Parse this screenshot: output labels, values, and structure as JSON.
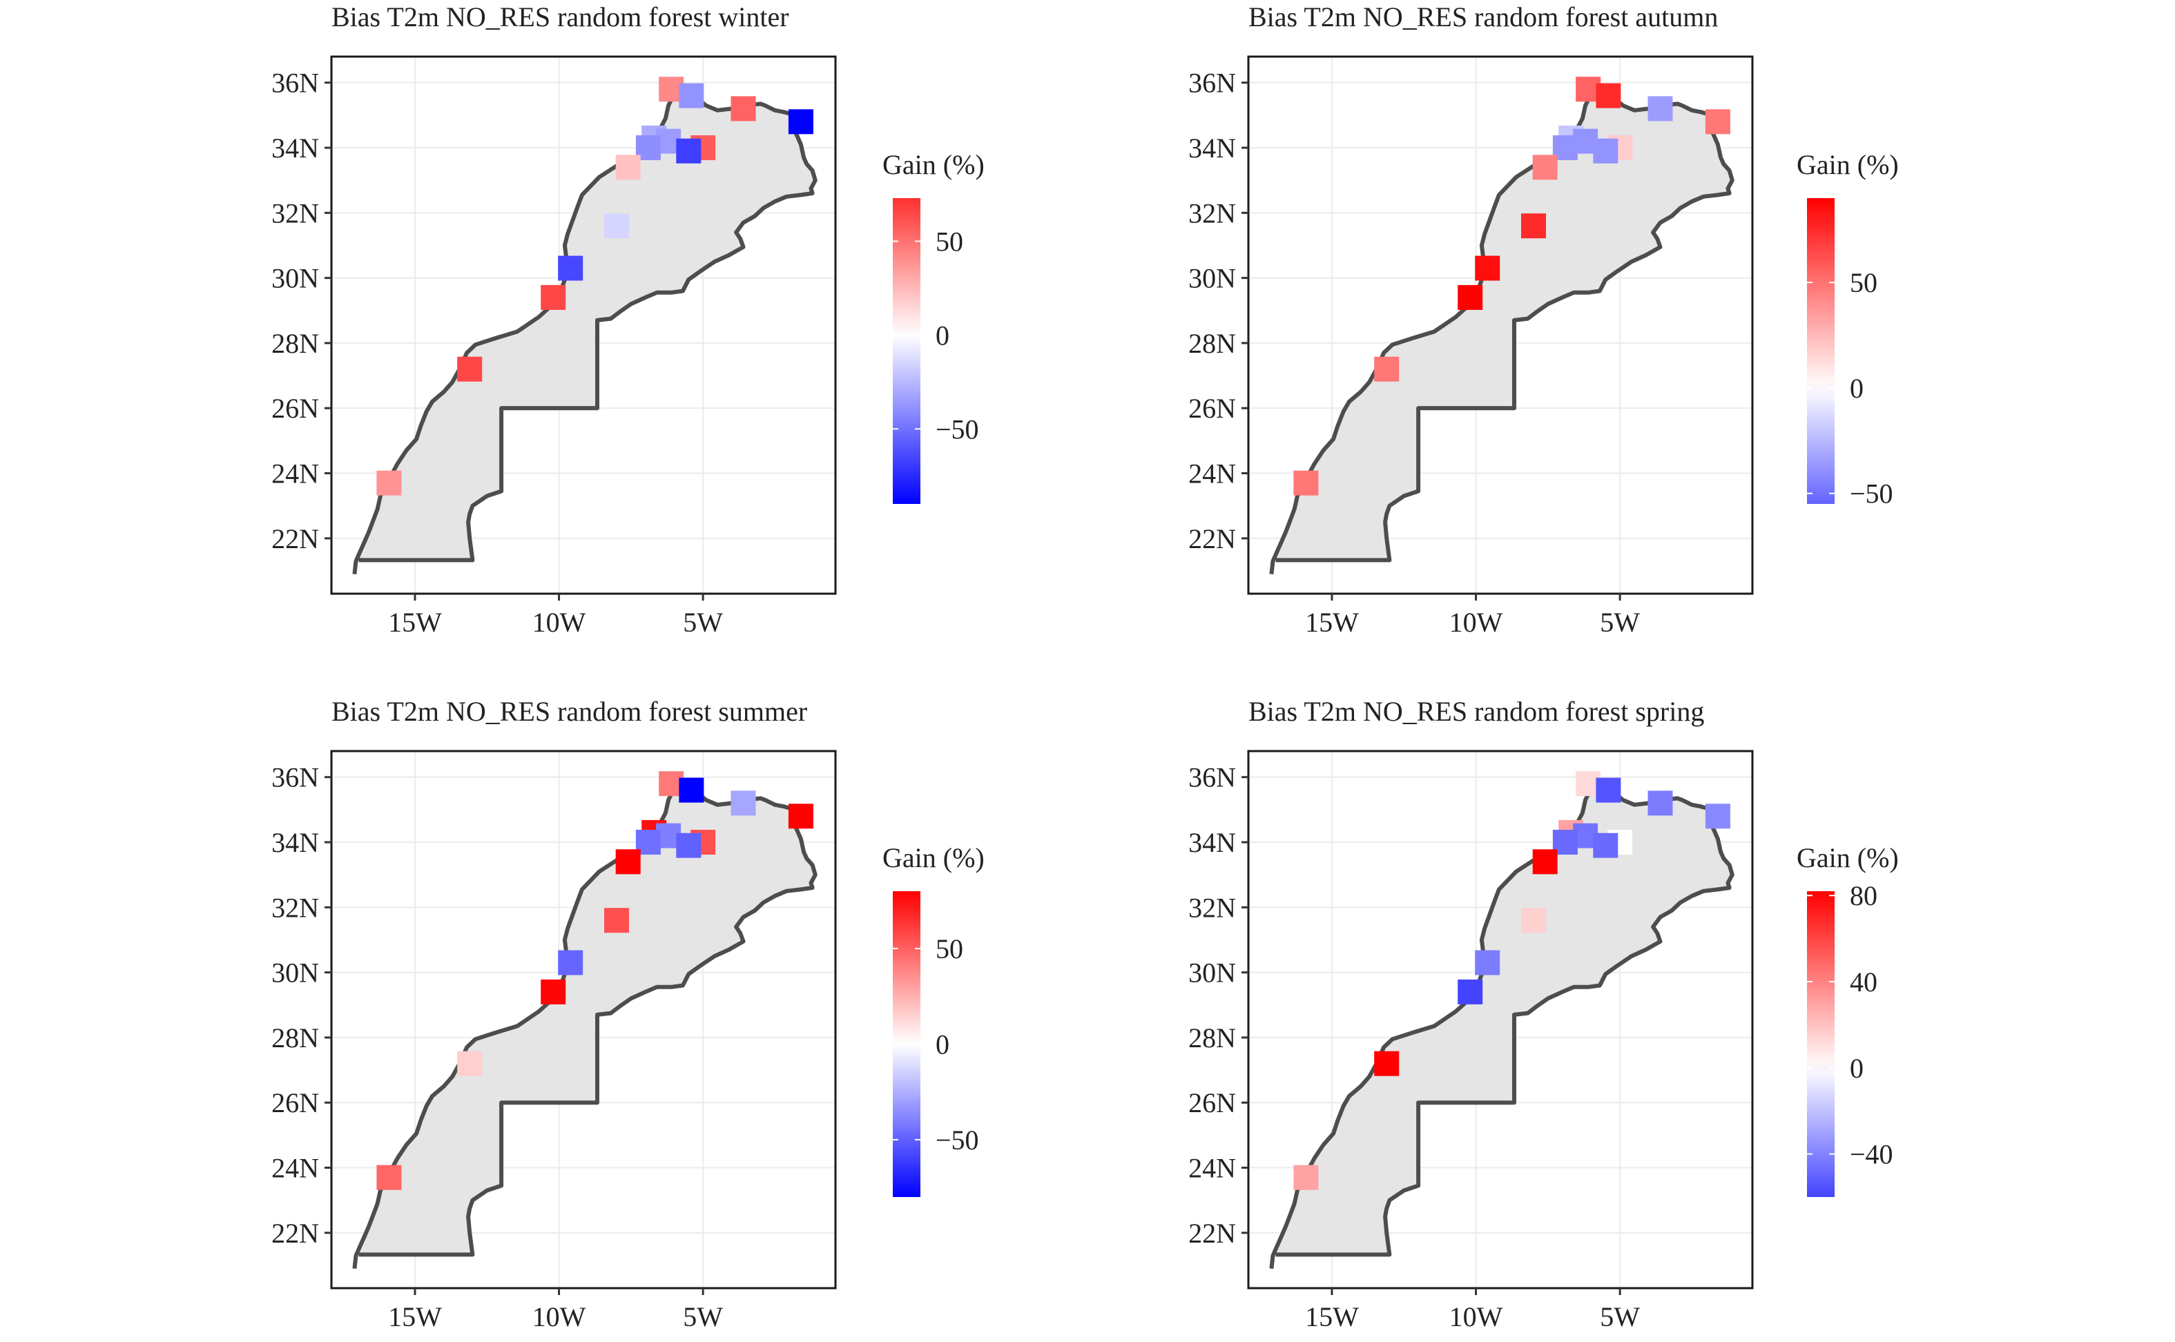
{
  "figure": {
    "background": "#ffffff",
    "land_fill": "#e5e5e5",
    "border_color": "#4d4d4d",
    "grid_color": "#ebebeb",
    "color_low": "#0000ff",
    "color_mid": "#ffffff",
    "color_high": "#ff0000"
  },
  "axes": {
    "lon_ticks": [
      {
        "value": -15,
        "label": "15W"
      },
      {
        "value": -10,
        "label": "10W"
      },
      {
        "value": -5,
        "label": "5W"
      }
    ],
    "lat_ticks": [
      {
        "value": 36,
        "label": "36N"
      },
      {
        "value": 34,
        "label": "34N"
      },
      {
        "value": 32,
        "label": "32N"
      },
      {
        "value": 30,
        "label": "30N"
      },
      {
        "value": 28,
        "label": "28N"
      },
      {
        "value": 26,
        "label": "26N"
      },
      {
        "value": 24,
        "label": "24N"
      },
      {
        "value": 22,
        "label": "22N"
      }
    ],
    "xlim": [
      -17.9,
      -0.4
    ],
    "ylim": [
      20.3,
      36.8
    ]
  },
  "chart_data": [
    {
      "type": "map-points",
      "title": "Bias T2m NO_RES random forest winter",
      "legend": {
        "title": "Gain (%)",
        "range": [
          -90,
          73
        ],
        "breaks": [
          {
            "value": 50,
            "label": "50"
          },
          {
            "value": 0,
            "label": "0"
          },
          {
            "value": -50,
            "label": "−50"
          }
        ]
      },
      "points": [
        {
          "lon": -6.1,
          "lat": 35.8,
          "gain": 42
        },
        {
          "lon": -5.4,
          "lat": 35.6,
          "gain": -38
        },
        {
          "lon": -3.6,
          "lat": 35.2,
          "gain": 55
        },
        {
          "lon": -1.6,
          "lat": 34.8,
          "gain": -90
        },
        {
          "lon": -6.7,
          "lat": 34.3,
          "gain": -30
        },
        {
          "lon": -6.2,
          "lat": 34.2,
          "gain": -35
        },
        {
          "lon": -6.9,
          "lat": 34.0,
          "gain": -40
        },
        {
          "lon": -5.0,
          "lat": 34.0,
          "gain": 58
        },
        {
          "lon": -5.5,
          "lat": 33.9,
          "gain": -68
        },
        {
          "lon": -7.6,
          "lat": 33.4,
          "gain": 22
        },
        {
          "lon": -8.0,
          "lat": 31.6,
          "gain": -15
        },
        {
          "lon": -9.6,
          "lat": 30.3,
          "gain": -65
        },
        {
          "lon": -10.2,
          "lat": 29.4,
          "gain": 65
        },
        {
          "lon": -13.1,
          "lat": 27.2,
          "gain": 65
        },
        {
          "lon": -15.9,
          "lat": 23.7,
          "gain": 38
        }
      ]
    },
    {
      "type": "map-points",
      "title": "Bias T2m NO_RES random forest autumn",
      "legend": {
        "title": "Gain (%)",
        "range": [
          -55,
          90
        ],
        "breaks": [
          {
            "value": 50,
            "label": "50"
          },
          {
            "value": 0,
            "label": "0"
          },
          {
            "value": -50,
            "label": "−50"
          }
        ]
      },
      "points": [
        {
          "lon": -6.1,
          "lat": 35.8,
          "gain": 55
        },
        {
          "lon": -5.4,
          "lat": 35.6,
          "gain": 75
        },
        {
          "lon": -3.6,
          "lat": 35.2,
          "gain": -35
        },
        {
          "lon": -1.6,
          "lat": 34.8,
          "gain": 48
        },
        {
          "lon": -6.7,
          "lat": 34.3,
          "gain": -20
        },
        {
          "lon": -6.2,
          "lat": 34.2,
          "gain": -38
        },
        {
          "lon": -6.9,
          "lat": 34.0,
          "gain": -38
        },
        {
          "lon": -5.0,
          "lat": 34.0,
          "gain": 18
        },
        {
          "lon": -5.5,
          "lat": 33.9,
          "gain": -38
        },
        {
          "lon": -7.6,
          "lat": 33.4,
          "gain": 45
        },
        {
          "lon": -8.0,
          "lat": 31.6,
          "gain": 75
        },
        {
          "lon": -9.6,
          "lat": 30.3,
          "gain": 85
        },
        {
          "lon": -10.2,
          "lat": 29.4,
          "gain": 90
        },
        {
          "lon": -13.1,
          "lat": 27.2,
          "gain": 48
        },
        {
          "lon": -15.9,
          "lat": 23.7,
          "gain": 48
        }
      ]
    },
    {
      "type": "map-points",
      "title": "Bias T2m NO_RES random forest summer",
      "legend": {
        "title": "Gain (%)",
        "range": [
          -80,
          80
        ],
        "breaks": [
          {
            "value": 50,
            "label": "50"
          },
          {
            "value": 0,
            "label": "0"
          },
          {
            "value": -50,
            "label": "−50"
          }
        ]
      },
      "points": [
        {
          "lon": -6.1,
          "lat": 35.8,
          "gain": 42
        },
        {
          "lon": -5.4,
          "lat": 35.6,
          "gain": -80
        },
        {
          "lon": -3.6,
          "lat": 35.2,
          "gain": -28
        },
        {
          "lon": -1.6,
          "lat": 34.8,
          "gain": 80
        },
        {
          "lon": -6.7,
          "lat": 34.3,
          "gain": 75
        },
        {
          "lon": -6.2,
          "lat": 34.2,
          "gain": -40
        },
        {
          "lon": -6.9,
          "lat": 34.0,
          "gain": -45
        },
        {
          "lon": -5.0,
          "lat": 34.0,
          "gain": 55
        },
        {
          "lon": -5.5,
          "lat": 33.9,
          "gain": -50
        },
        {
          "lon": -7.6,
          "lat": 33.4,
          "gain": 80
        },
        {
          "lon": -8.0,
          "lat": 31.6,
          "gain": 55
        },
        {
          "lon": -9.6,
          "lat": 30.3,
          "gain": -48
        },
        {
          "lon": -10.2,
          "lat": 29.4,
          "gain": 78
        },
        {
          "lon": -13.1,
          "lat": 27.2,
          "gain": 15
        },
        {
          "lon": -15.9,
          "lat": 23.7,
          "gain": 48
        }
      ]
    },
    {
      "type": "map-points",
      "title": "Bias T2m NO_RES random forest spring",
      "legend": {
        "title": "Gain (%)",
        "range": [
          -60,
          82
        ],
        "breaks": [
          {
            "value": 80,
            "label": "80"
          },
          {
            "value": 40,
            "label": "40"
          },
          {
            "value": 0,
            "label": "0"
          },
          {
            "value": -40,
            "label": "−40"
          }
        ]
      },
      "points": [
        {
          "lon": -6.1,
          "lat": 35.8,
          "gain": 12
        },
        {
          "lon": -5.4,
          "lat": 35.6,
          "gain": -55
        },
        {
          "lon": -3.6,
          "lat": 35.2,
          "gain": -42
        },
        {
          "lon": -1.6,
          "lat": 34.8,
          "gain": -38
        },
        {
          "lon": -6.7,
          "lat": 34.3,
          "gain": 30
        },
        {
          "lon": -6.2,
          "lat": 34.2,
          "gain": -45
        },
        {
          "lon": -6.9,
          "lat": 34.0,
          "gain": -48
        },
        {
          "lon": -5.0,
          "lat": 34.0,
          "gain": 0
        },
        {
          "lon": -5.5,
          "lat": 33.9,
          "gain": -48
        },
        {
          "lon": -7.6,
          "lat": 33.4,
          "gain": 82
        },
        {
          "lon": -8.0,
          "lat": 31.6,
          "gain": 15
        },
        {
          "lon": -9.6,
          "lat": 30.3,
          "gain": -42
        },
        {
          "lon": -10.2,
          "lat": 29.4,
          "gain": -60
        },
        {
          "lon": -13.1,
          "lat": 27.2,
          "gain": 82
        },
        {
          "lon": -15.9,
          "lat": 23.7,
          "gain": 30
        }
      ]
    }
  ],
  "morocco_outline": [
    [
      -17.1,
      20.9
    ],
    [
      -17.05,
      21.3
    ],
    [
      -16.9,
      21.6
    ],
    [
      -16.75,
      21.9
    ],
    [
      -16.6,
      22.2
    ],
    [
      -16.45,
      22.55
    ],
    [
      -16.3,
      22.9
    ],
    [
      -16.2,
      23.3
    ],
    [
      -16.0,
      23.6
    ],
    [
      -15.85,
      23.9
    ],
    [
      -15.6,
      24.3
    ],
    [
      -15.3,
      24.7
    ],
    [
      -14.95,
      25.05
    ],
    [
      -14.8,
      25.45
    ],
    [
      -14.6,
      25.9
    ],
    [
      -14.4,
      26.2
    ],
    [
      -14.0,
      26.5
    ],
    [
      -13.7,
      26.8
    ],
    [
      -13.45,
      27.2
    ],
    [
      -13.2,
      27.7
    ],
    [
      -12.9,
      27.95
    ],
    [
      -12.2,
      28.15
    ],
    [
      -11.45,
      28.35
    ],
    [
      -10.7,
      28.8
    ],
    [
      -10.2,
      29.2
    ],
    [
      -9.9,
      29.7
    ],
    [
      -9.65,
      30.3
    ],
    [
      -9.75,
      30.65
    ],
    [
      -9.8,
      31.0
    ],
    [
      -9.7,
      31.35
    ],
    [
      -9.35,
      32.2
    ],
    [
      -9.2,
      32.55
    ],
    [
      -8.6,
      33.1
    ],
    [
      -7.9,
      33.5
    ],
    [
      -7.3,
      33.7
    ],
    [
      -6.85,
      34.05
    ],
    [
      -6.6,
      34.4
    ],
    [
      -6.3,
      34.9
    ],
    [
      -6.2,
      35.3
    ],
    [
      -6.0,
      35.65
    ],
    [
      -5.9,
      35.8
    ],
    [
      -5.6,
      35.85
    ],
    [
      -5.4,
      35.85
    ],
    [
      -5.3,
      35.6
    ],
    [
      -4.9,
      35.3
    ],
    [
      -4.5,
      35.15
    ],
    [
      -4.0,
      35.2
    ],
    [
      -3.5,
      35.3
    ],
    [
      -3.0,
      35.35
    ],
    [
      -2.85,
      35.3
    ],
    [
      -2.5,
      35.15
    ],
    [
      -2.2,
      35.1
    ],
    [
      -2.0,
      35.05
    ],
    [
      -1.8,
      34.9
    ],
    [
      -1.75,
      34.7
    ],
    [
      -1.8,
      34.5
    ],
    [
      -1.7,
      34.3
    ],
    [
      -1.6,
      34.1
    ],
    [
      -1.55,
      33.9
    ],
    [
      -1.5,
      33.7
    ],
    [
      -1.4,
      33.5
    ],
    [
      -1.2,
      33.3
    ],
    [
      -1.1,
      33.0
    ],
    [
      -1.25,
      32.75
    ],
    [
      -1.2,
      32.6
    ],
    [
      -1.6,
      32.55
    ],
    [
      -2.1,
      32.5
    ],
    [
      -2.5,
      32.35
    ],
    [
      -2.9,
      32.15
    ],
    [
      -3.2,
      31.9
    ],
    [
      -3.6,
      31.7
    ],
    [
      -3.85,
      31.4
    ],
    [
      -3.7,
      31.2
    ],
    [
      -3.6,
      30.95
    ],
    [
      -4.1,
      30.7
    ],
    [
      -4.6,
      30.5
    ],
    [
      -5.1,
      30.2
    ],
    [
      -5.5,
      29.95
    ],
    [
      -5.7,
      29.6
    ],
    [
      -6.1,
      29.55
    ],
    [
      -6.6,
      29.55
    ],
    [
      -7.0,
      29.4
    ],
    [
      -7.5,
      29.2
    ],
    [
      -7.9,
      28.95
    ],
    [
      -8.2,
      28.75
    ],
    [
      -8.67,
      28.7
    ],
    [
      -8.67,
      27.67
    ],
    [
      -8.67,
      26.0
    ],
    [
      -12.0,
      26.0
    ],
    [
      -12.0,
      24.5
    ],
    [
      -12.0,
      23.45
    ],
    [
      -12.5,
      23.3
    ],
    [
      -13.0,
      23.0
    ],
    [
      -13.1,
      22.75
    ],
    [
      -13.15,
      22.5
    ],
    [
      -13.1,
      22.0
    ],
    [
      -13.0,
      21.33
    ],
    [
      -15.5,
      21.33
    ],
    [
      -16.95,
      21.33
    ]
  ]
}
